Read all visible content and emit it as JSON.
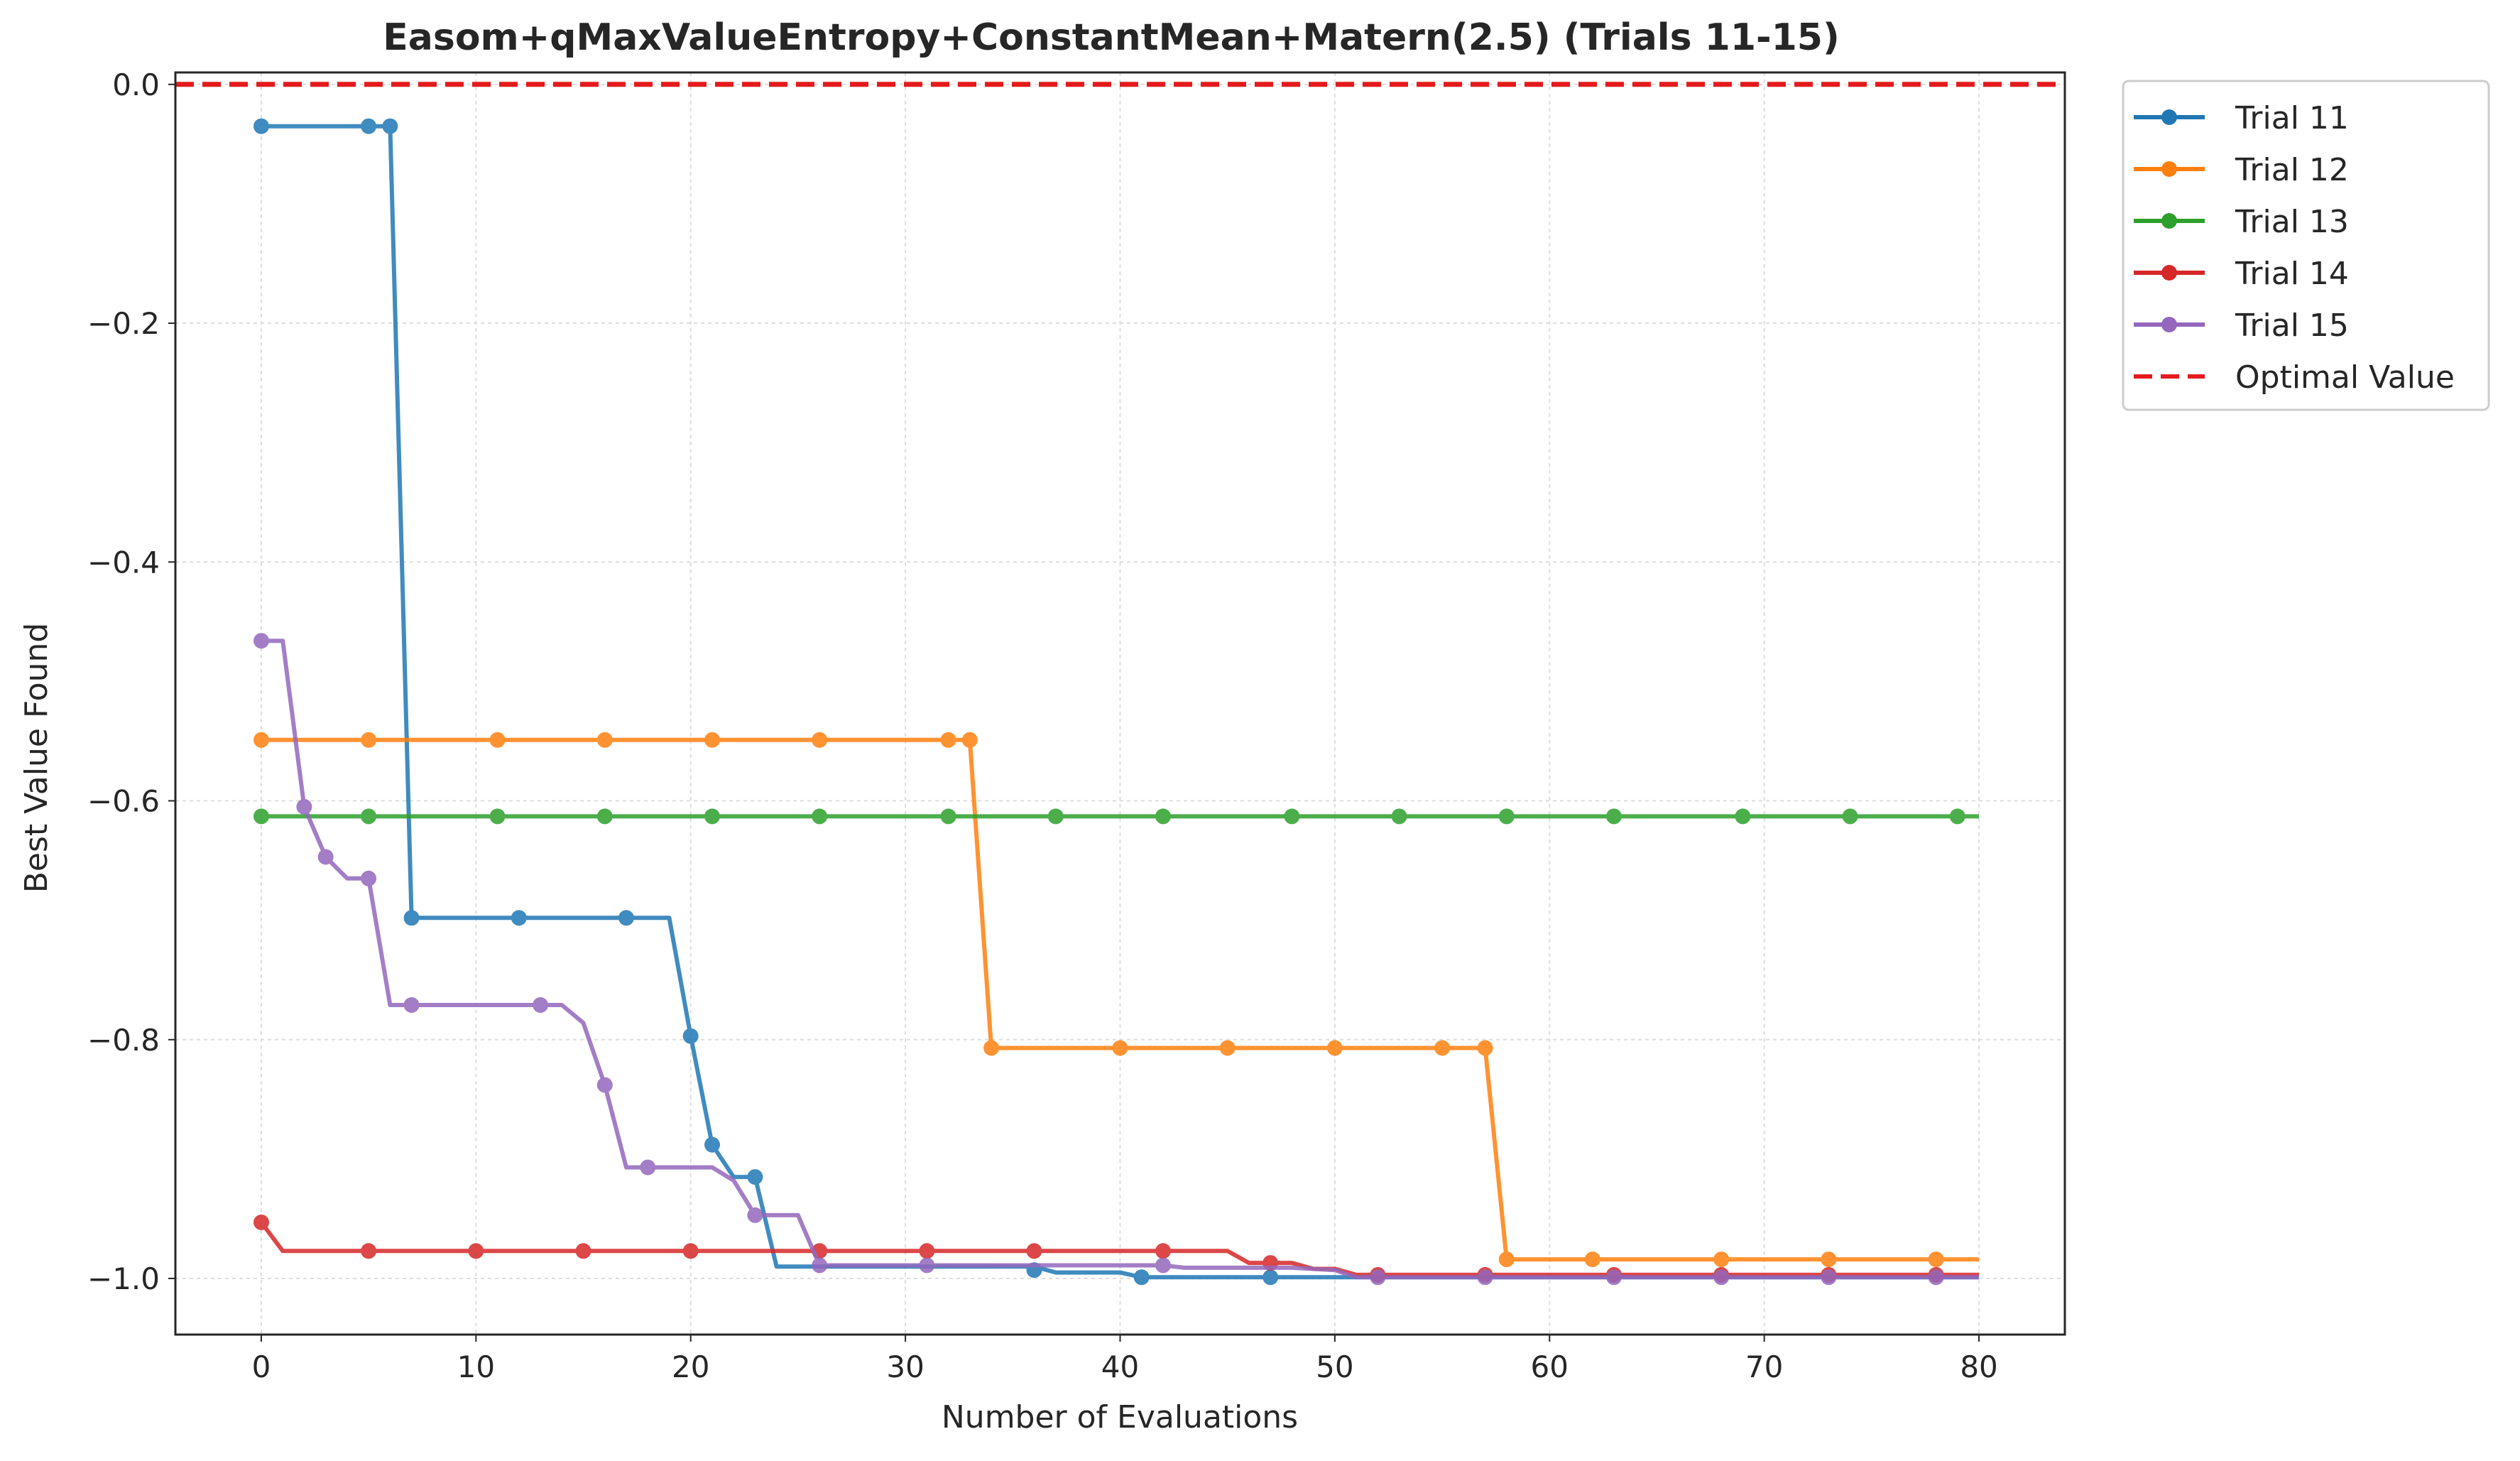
{
  "chart_data": {
    "type": "line",
    "title": "Easom+qMaxValueEntropy+ConstantMean+Matern(2.5) (Trials 11-15)",
    "xlabel": "Number of Evaluations",
    "ylabel": "Best Value Found",
    "xlim": [
      -4,
      84
    ],
    "ylim": [
      -1.047,
      0.01
    ],
    "x_ticks": [
      0,
      10,
      20,
      30,
      40,
      50,
      60,
      70,
      80
    ],
    "x_tick_labels": [
      "0",
      "10",
      "20",
      "30",
      "40",
      "50",
      "60",
      "70",
      "80"
    ],
    "y_ticks": [
      0.0,
      -0.2,
      -0.4,
      -0.6,
      -0.8,
      -1.0
    ],
    "y_tick_labels": [
      "0.0",
      "−0.2",
      "−0.4",
      "−0.6",
      "−0.8",
      "−1.0"
    ],
    "grid": true,
    "legend_position": "outside-top-right",
    "reference_line": {
      "name": "Optimal Value",
      "y": 0.0,
      "color": "#e41a1c",
      "style": "dashed"
    },
    "series": [
      {
        "name": "Trial 11",
        "color": "#1f77b4",
        "line": [
          [
            0,
            -0.035
          ],
          [
            5,
            -0.035
          ],
          [
            6,
            -0.035
          ],
          [
            7,
            -0.698
          ],
          [
            12,
            -0.698
          ],
          [
            17,
            -0.698
          ],
          [
            19,
            -0.698
          ],
          [
            20,
            -0.797
          ],
          [
            21,
            -0.888
          ],
          [
            22,
            -0.915
          ],
          [
            23,
            -0.915
          ],
          [
            24,
            -0.99
          ],
          [
            36,
            -0.99
          ],
          [
            37,
            -0.995
          ],
          [
            40,
            -0.995
          ],
          [
            41,
            -0.999
          ],
          [
            80,
            -0.999
          ]
        ],
        "markers": [
          [
            0,
            -0.035
          ],
          [
            5,
            -0.035
          ],
          [
            6,
            -0.035
          ],
          [
            7,
            -0.698
          ],
          [
            12,
            -0.698
          ],
          [
            17,
            -0.698
          ],
          [
            20,
            -0.797
          ],
          [
            21,
            -0.888
          ],
          [
            23,
            -0.915
          ],
          [
            36,
            -0.993
          ],
          [
            41,
            -0.999
          ],
          [
            47,
            -0.999
          ]
        ]
      },
      {
        "name": "Trial 12",
        "color": "#ff7f0e",
        "line": [
          [
            0,
            -0.549
          ],
          [
            33,
            -0.549
          ],
          [
            34,
            -0.807
          ],
          [
            57,
            -0.807
          ],
          [
            58,
            -0.984
          ],
          [
            80,
            -0.984
          ]
        ],
        "markers": [
          [
            0,
            -0.549
          ],
          [
            5,
            -0.549
          ],
          [
            11,
            -0.549
          ],
          [
            16,
            -0.549
          ],
          [
            21,
            -0.549
          ],
          [
            26,
            -0.549
          ],
          [
            32,
            -0.549
          ],
          [
            33,
            -0.549
          ],
          [
            34,
            -0.807
          ],
          [
            40,
            -0.807
          ],
          [
            45,
            -0.807
          ],
          [
            50,
            -0.807
          ],
          [
            55,
            -0.807
          ],
          [
            57,
            -0.807
          ],
          [
            58,
            -0.984
          ],
          [
            62,
            -0.984
          ],
          [
            68,
            -0.984
          ],
          [
            73,
            -0.984
          ],
          [
            78,
            -0.984
          ]
        ]
      },
      {
        "name": "Trial 13",
        "color": "#2ca02c",
        "line": [
          [
            0,
            -0.613
          ],
          [
            80,
            -0.613
          ]
        ],
        "markers": [
          [
            0,
            -0.613
          ],
          [
            5,
            -0.613
          ],
          [
            11,
            -0.613
          ],
          [
            16,
            -0.613
          ],
          [
            21,
            -0.613
          ],
          [
            26,
            -0.613
          ],
          [
            32,
            -0.613
          ],
          [
            37,
            -0.613
          ],
          [
            42,
            -0.613
          ],
          [
            48,
            -0.613
          ],
          [
            53,
            -0.613
          ],
          [
            58,
            -0.613
          ],
          [
            63,
            -0.613
          ],
          [
            69,
            -0.613
          ],
          [
            74,
            -0.613
          ],
          [
            79,
            -0.613
          ]
        ]
      },
      {
        "name": "Trial 14",
        "color": "#d62728",
        "line": [
          [
            0,
            -0.953
          ],
          [
            1,
            -0.977
          ],
          [
            45,
            -0.977
          ],
          [
            46,
            -0.987
          ],
          [
            48,
            -0.987
          ],
          [
            49,
            -0.992
          ],
          [
            50,
            -0.992
          ],
          [
            51,
            -0.997
          ],
          [
            80,
            -0.997
          ]
        ],
        "markers": [
          [
            0,
            -0.953
          ],
          [
            5,
            -0.977
          ],
          [
            10,
            -0.977
          ],
          [
            15,
            -0.977
          ],
          [
            20,
            -0.977
          ],
          [
            26,
            -0.977
          ],
          [
            31,
            -0.977
          ],
          [
            36,
            -0.977
          ],
          [
            42,
            -0.977
          ],
          [
            47,
            -0.987
          ],
          [
            52,
            -0.997
          ],
          [
            57,
            -0.997
          ],
          [
            63,
            -0.997
          ],
          [
            68,
            -0.997
          ],
          [
            73,
            -0.997
          ],
          [
            78,
            -0.997
          ]
        ]
      },
      {
        "name": "Trial 15",
        "color": "#9467bd",
        "line": [
          [
            0,
            -0.466
          ],
          [
            1,
            -0.466
          ],
          [
            2,
            -0.605
          ],
          [
            3,
            -0.647
          ],
          [
            4,
            -0.665
          ],
          [
            5,
            -0.665
          ],
          [
            6,
            -0.771
          ],
          [
            13,
            -0.771
          ],
          [
            14,
            -0.771
          ],
          [
            15,
            -0.786
          ],
          [
            16,
            -0.838
          ],
          [
            17,
            -0.907
          ],
          [
            21,
            -0.907
          ],
          [
            22,
            -0.918
          ],
          [
            23,
            -0.947
          ],
          [
            25,
            -0.947
          ],
          [
            26,
            -0.989
          ],
          [
            41,
            -0.989
          ],
          [
            42,
            -0.989
          ],
          [
            43,
            -0.991
          ],
          [
            48,
            -0.991
          ],
          [
            49,
            -0.992
          ],
          [
            50,
            -0.993
          ],
          [
            51,
            -0.999
          ],
          [
            80,
            -0.999
          ]
        ],
        "markers": [
          [
            0,
            -0.466
          ],
          [
            2,
            -0.605
          ],
          [
            3,
            -0.647
          ],
          [
            5,
            -0.665
          ],
          [
            7,
            -0.771
          ],
          [
            13,
            -0.771
          ],
          [
            16,
            -0.838
          ],
          [
            18,
            -0.907
          ],
          [
            23,
            -0.947
          ],
          [
            26,
            -0.989
          ],
          [
            31,
            -0.989
          ],
          [
            42,
            -0.989
          ],
          [
            52,
            -0.999
          ],
          [
            57,
            -0.999
          ],
          [
            63,
            -0.999
          ],
          [
            68,
            -0.999
          ],
          [
            73,
            -0.999
          ],
          [
            78,
            -0.999
          ]
        ]
      }
    ]
  }
}
